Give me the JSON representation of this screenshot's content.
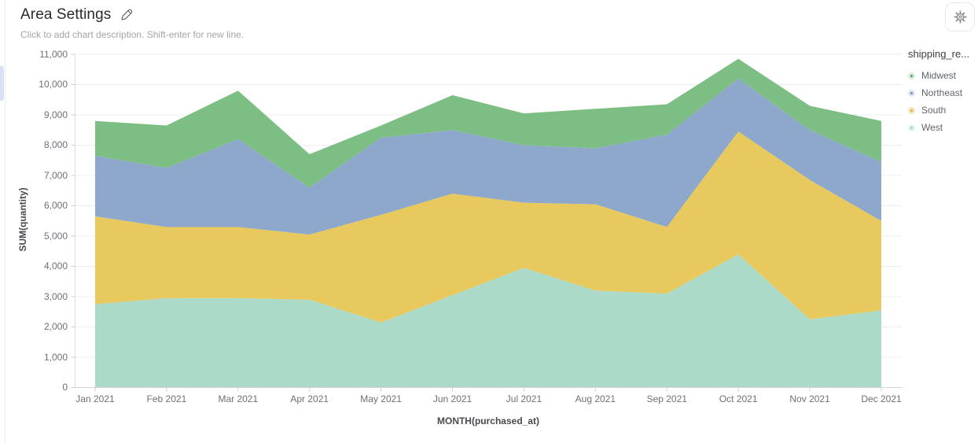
{
  "header": {
    "title": "Area Settings",
    "subtitle": "Click to add chart description. Shift-enter for new line.",
    "icons": {
      "edit": "pencil-icon",
      "settings": "gear-icon"
    }
  },
  "legend": {
    "title": "shipping_re...",
    "items": [
      {
        "label": "Midwest",
        "dot_color": "#47a35e",
        "ring_color": "#dceadd"
      },
      {
        "label": "Northeast",
        "dot_color": "#6d8cba",
        "ring_color": "#dfe5ef"
      },
      {
        "label": "South",
        "dot_color": "#e2b02f",
        "ring_color": "#f4e5c2"
      },
      {
        "label": "West",
        "dot_color": "#98d6bd",
        "ring_color": "#e3f2ec"
      }
    ]
  },
  "chart_data": {
    "type": "area",
    "stacked": true,
    "title": "",
    "xlabel": "MONTH(purchased_at)",
    "ylabel": "SUM(quantity)",
    "x": [
      "Jan 2021",
      "Feb 2021",
      "Mar 2021",
      "Apr 2021",
      "May 2021",
      "Jun 2021",
      "Jul 2021",
      "Aug 2021",
      "Sep 2021",
      "Oct 2021",
      "Nov 2021",
      "Dec 2021"
    ],
    "yticks": [
      "0",
      "1,000",
      "2,000",
      "3,000",
      "4,000",
      "5,000",
      "6,000",
      "7,000",
      "8,000",
      "9,000",
      "10,000",
      "11,000"
    ],
    "ylim": [
      0,
      11000
    ],
    "ytick_step": 1000,
    "grid": true,
    "legend_position": "right",
    "series": [
      {
        "name": "West",
        "fill": "#abdbc8",
        "values": [
          2750,
          2950,
          2950,
          2900,
          2150,
          3050,
          3950,
          3200,
          3100,
          4400,
          2250,
          2550
        ]
      },
      {
        "name": "South",
        "fill": "#e8c95e",
        "values": [
          2900,
          2350,
          2350,
          2150,
          3550,
          3350,
          2150,
          2850,
          2200,
          4050,
          4600,
          2950
        ]
      },
      {
        "name": "Northeast",
        "fill": "#8da8ca",
        "values": [
          2000,
          1950,
          2900,
          1550,
          2550,
          2100,
          1900,
          1850,
          3050,
          1750,
          1650,
          1950
        ]
      },
      {
        "name": "Midwest",
        "fill": "#7cbe84",
        "values": [
          1150,
          1400,
          1600,
          1100,
          400,
          1150,
          1050,
          1300,
          1000,
          650,
          800,
          1350
        ]
      }
    ]
  }
}
